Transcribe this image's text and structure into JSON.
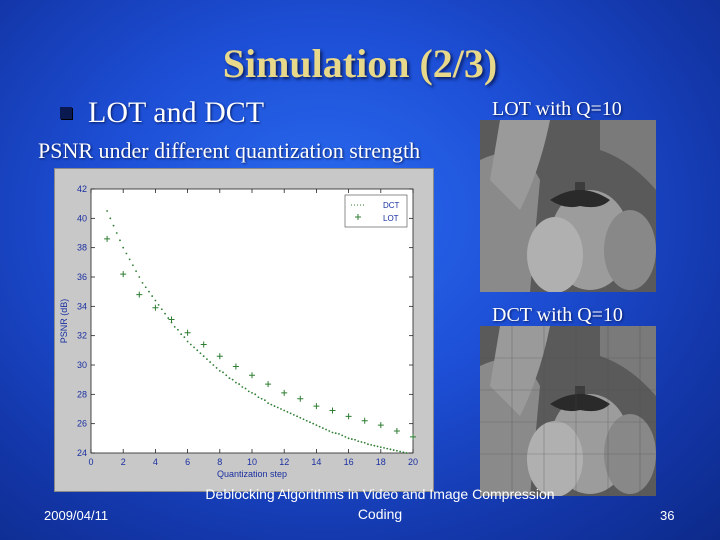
{
  "slide": {
    "title": "Simulation (2/3)",
    "bullet": "LOT and DCT",
    "subheading": "PSNR under different quantization strength",
    "lot_caption": "LOT with Q=10",
    "dct_caption": "DCT with Q=10",
    "footer_date": "2009/04/11",
    "footer_title_line1": "Deblocking Algorithms in Video and Image Compression",
    "footer_title_line2": "Coding",
    "page_number": "36"
  },
  "colors": {
    "title": "#e8d88a",
    "background": "#1d4fd6",
    "series": "#2e7d32"
  },
  "chart_data": {
    "type": "scatter",
    "xlabel": "Quantization step",
    "ylabel": "PSNR (dB)",
    "xlim": [
      0,
      20
    ],
    "ylim": [
      24,
      42
    ],
    "xticks": [
      0,
      2,
      4,
      6,
      8,
      10,
      12,
      14,
      16,
      18,
      20
    ],
    "yticks": [
      24,
      26,
      28,
      30,
      32,
      34,
      36,
      38,
      40,
      42
    ],
    "legend_position": "top-right",
    "series": [
      {
        "name": "DCT",
        "marker": "dot",
        "x": [
          1,
          1.2,
          1.4,
          1.6,
          1.8,
          2,
          2.2,
          2.4,
          2.6,
          2.8,
          3,
          3.2,
          3.4,
          3.6,
          3.8,
          4,
          4.2,
          4.4,
          4.6,
          4.8,
          5,
          5.2,
          5.4,
          5.6,
          5.8,
          6,
          6.2,
          6.4,
          6.6,
          6.8,
          7,
          7.2,
          7.4,
          7.6,
          7.8,
          8,
          8.2,
          8.4,
          8.6,
          8.8,
          9,
          9.2,
          9.4,
          9.6,
          9.8,
          10,
          10.2,
          10.4,
          10.6,
          10.8,
          11,
          11.2,
          11.4,
          11.6,
          11.8,
          12,
          12.2,
          12.4,
          12.6,
          12.8,
          13,
          13.2,
          13.4,
          13.6,
          13.8,
          14,
          14.2,
          14.4,
          14.6,
          14.8,
          15,
          15.2,
          15.4,
          15.6,
          15.8,
          16,
          16.2,
          16.4,
          16.6,
          16.8,
          17,
          17.2,
          17.4,
          17.6,
          17.8,
          18,
          18.2,
          18.4,
          18.6,
          18.8,
          19,
          19.2,
          19.4,
          19.6,
          19.8,
          20
        ],
        "y": [
          40.5,
          40,
          39.5,
          39,
          38.5,
          38,
          37.6,
          37.2,
          36.8,
          36.4,
          36,
          35.6,
          35.3,
          35,
          34.7,
          34.4,
          34.1,
          33.8,
          33.5,
          33.2,
          32.9,
          32.6,
          32.4,
          32.1,
          31.9,
          31.6,
          31.4,
          31.2,
          31,
          30.8,
          30.6,
          30.4,
          30.2,
          30,
          29.8,
          29.6,
          29.5,
          29.3,
          29.1,
          29,
          28.8,
          28.7,
          28.5,
          28.4,
          28.2,
          28.1,
          28,
          27.8,
          27.7,
          27.6,
          27.4,
          27.3,
          27.2,
          27.1,
          27,
          26.9,
          26.8,
          26.7,
          26.6,
          26.5,
          26.4,
          26.3,
          26.2,
          26.1,
          26,
          25.9,
          25.8,
          25.7,
          25.6,
          25.5,
          25.4,
          25.35,
          25.3,
          25.2,
          25.1,
          25,
          24.95,
          24.9,
          24.8,
          24.75,
          24.7,
          24.6,
          24.55,
          24.5,
          24.45,
          24.4,
          24.35,
          24.3,
          24.25,
          24.2,
          24.15,
          24.1,
          24.05,
          24.0,
          23.95,
          23.9
        ]
      },
      {
        "name": "LOT",
        "marker": "plus",
        "x": [
          1,
          2,
          3,
          4,
          5,
          6,
          7,
          8,
          9,
          10,
          11,
          12,
          13,
          14,
          15,
          16,
          17,
          18,
          19,
          20
        ],
        "y": [
          38.6,
          36.2,
          34.8,
          33.9,
          33.1,
          32.2,
          31.4,
          30.6,
          29.9,
          29.3,
          28.7,
          28.1,
          27.7,
          27.2,
          26.9,
          26.5,
          26.2,
          25.9,
          25.5,
          25.1
        ]
      }
    ]
  }
}
